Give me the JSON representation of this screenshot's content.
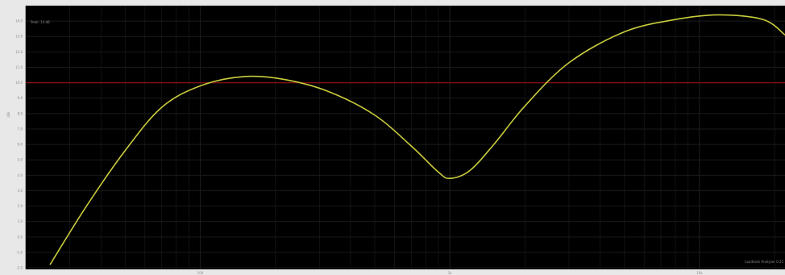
{
  "chart_data": {
    "type": "line",
    "title": "",
    "xlabel": "",
    "ylabel": "dBr",
    "corner_text": "Peak: 14 dB",
    "overlay_text": "Loudness Analyzer 0.25",
    "y_ticks": [
      "14.0",
      "13.0",
      "12.0",
      "11.0",
      "10.0",
      "9.0",
      "8.0",
      "7.0",
      "6.0",
      "5.0",
      "4.0",
      "3.0",
      "2.0",
      "1.0",
      "0.0",
      "-1.0",
      "-2.0"
    ],
    "x_ticks": [
      "100",
      "1k",
      "10k"
    ],
    "xlim": [
      20,
      22000
    ],
    "ylim": [
      -2.1,
      15.0
    ],
    "xscale": "log",
    "grid": true,
    "reference_line": {
      "y": 10.0,
      "color": "#8a1010"
    },
    "series": [
      {
        "color": "#c8cc3c",
        "points": [
          [
            25,
            -1.8
          ],
          [
            35,
            2.0
          ],
          [
            50,
            5.6
          ],
          [
            70,
            8.4
          ],
          [
            100,
            9.8
          ],
          [
            150,
            10.4
          ],
          [
            220,
            10.2
          ],
          [
            330,
            9.4
          ],
          [
            500,
            7.9
          ],
          [
            700,
            5.9
          ],
          [
            900,
            4.2
          ],
          [
            1000,
            3.8
          ],
          [
            1200,
            4.3
          ],
          [
            1500,
            6.0
          ],
          [
            2000,
            8.5
          ],
          [
            3000,
            11.3
          ],
          [
            5000,
            13.3
          ],
          [
            8000,
            14.1
          ],
          [
            12000,
            14.4
          ],
          [
            18000,
            14.1
          ],
          [
            22000,
            13.1
          ]
        ]
      }
    ],
    "colors": {
      "background": "#000000",
      "frame": "#e8e8e8",
      "grid": "#1a1a1a",
      "text": "#8a8a8a"
    }
  }
}
